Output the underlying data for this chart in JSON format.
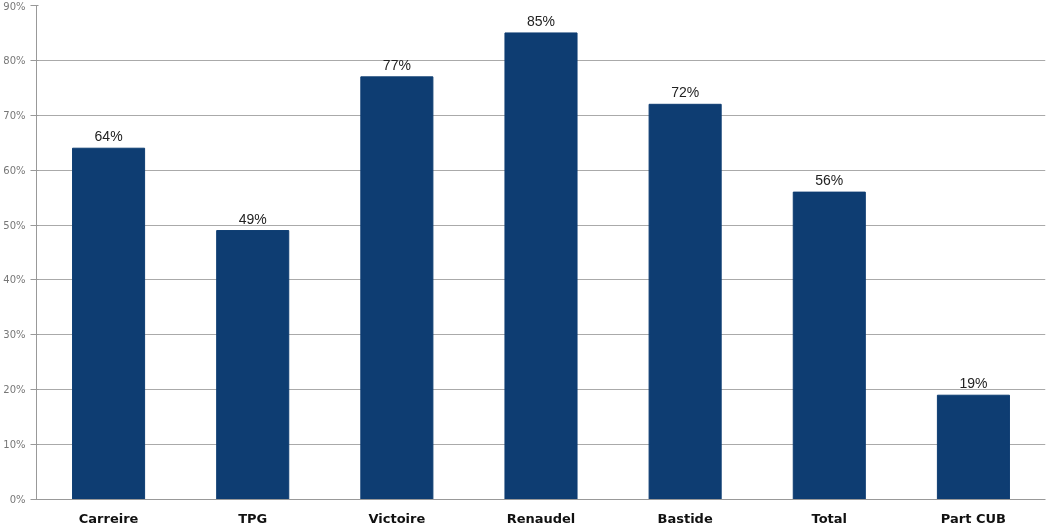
{
  "chart_data": {
    "type": "bar",
    "categories": [
      "Carreire",
      "TPG",
      "Victoire",
      "Renaudel",
      "Bastide",
      "Total",
      "Part CUB"
    ],
    "values": [
      64,
      49,
      77,
      85,
      72,
      56,
      19
    ],
    "value_labels": [
      "64%",
      "49%",
      "77%",
      "85%",
      "72%",
      "56%",
      "19%"
    ],
    "color": "#0e3d72",
    "ylim": [
      0,
      90
    ],
    "yticks": [
      {
        "value": 0,
        "label": "0%"
      },
      {
        "value": 10,
        "label": "10%"
      },
      {
        "value": 20,
        "label": "20%"
      },
      {
        "value": 30,
        "label": "30%"
      },
      {
        "value": 40,
        "label": "40%"
      },
      {
        "value": 50,
        "label": "50%"
      },
      {
        "value": 60,
        "label": "60%"
      },
      {
        "value": 70,
        "label": "70%"
      },
      {
        "value": 80,
        "label": "80%"
      },
      {
        "value": 90,
        "label": "90%"
      }
    ],
    "grid": "y"
  }
}
